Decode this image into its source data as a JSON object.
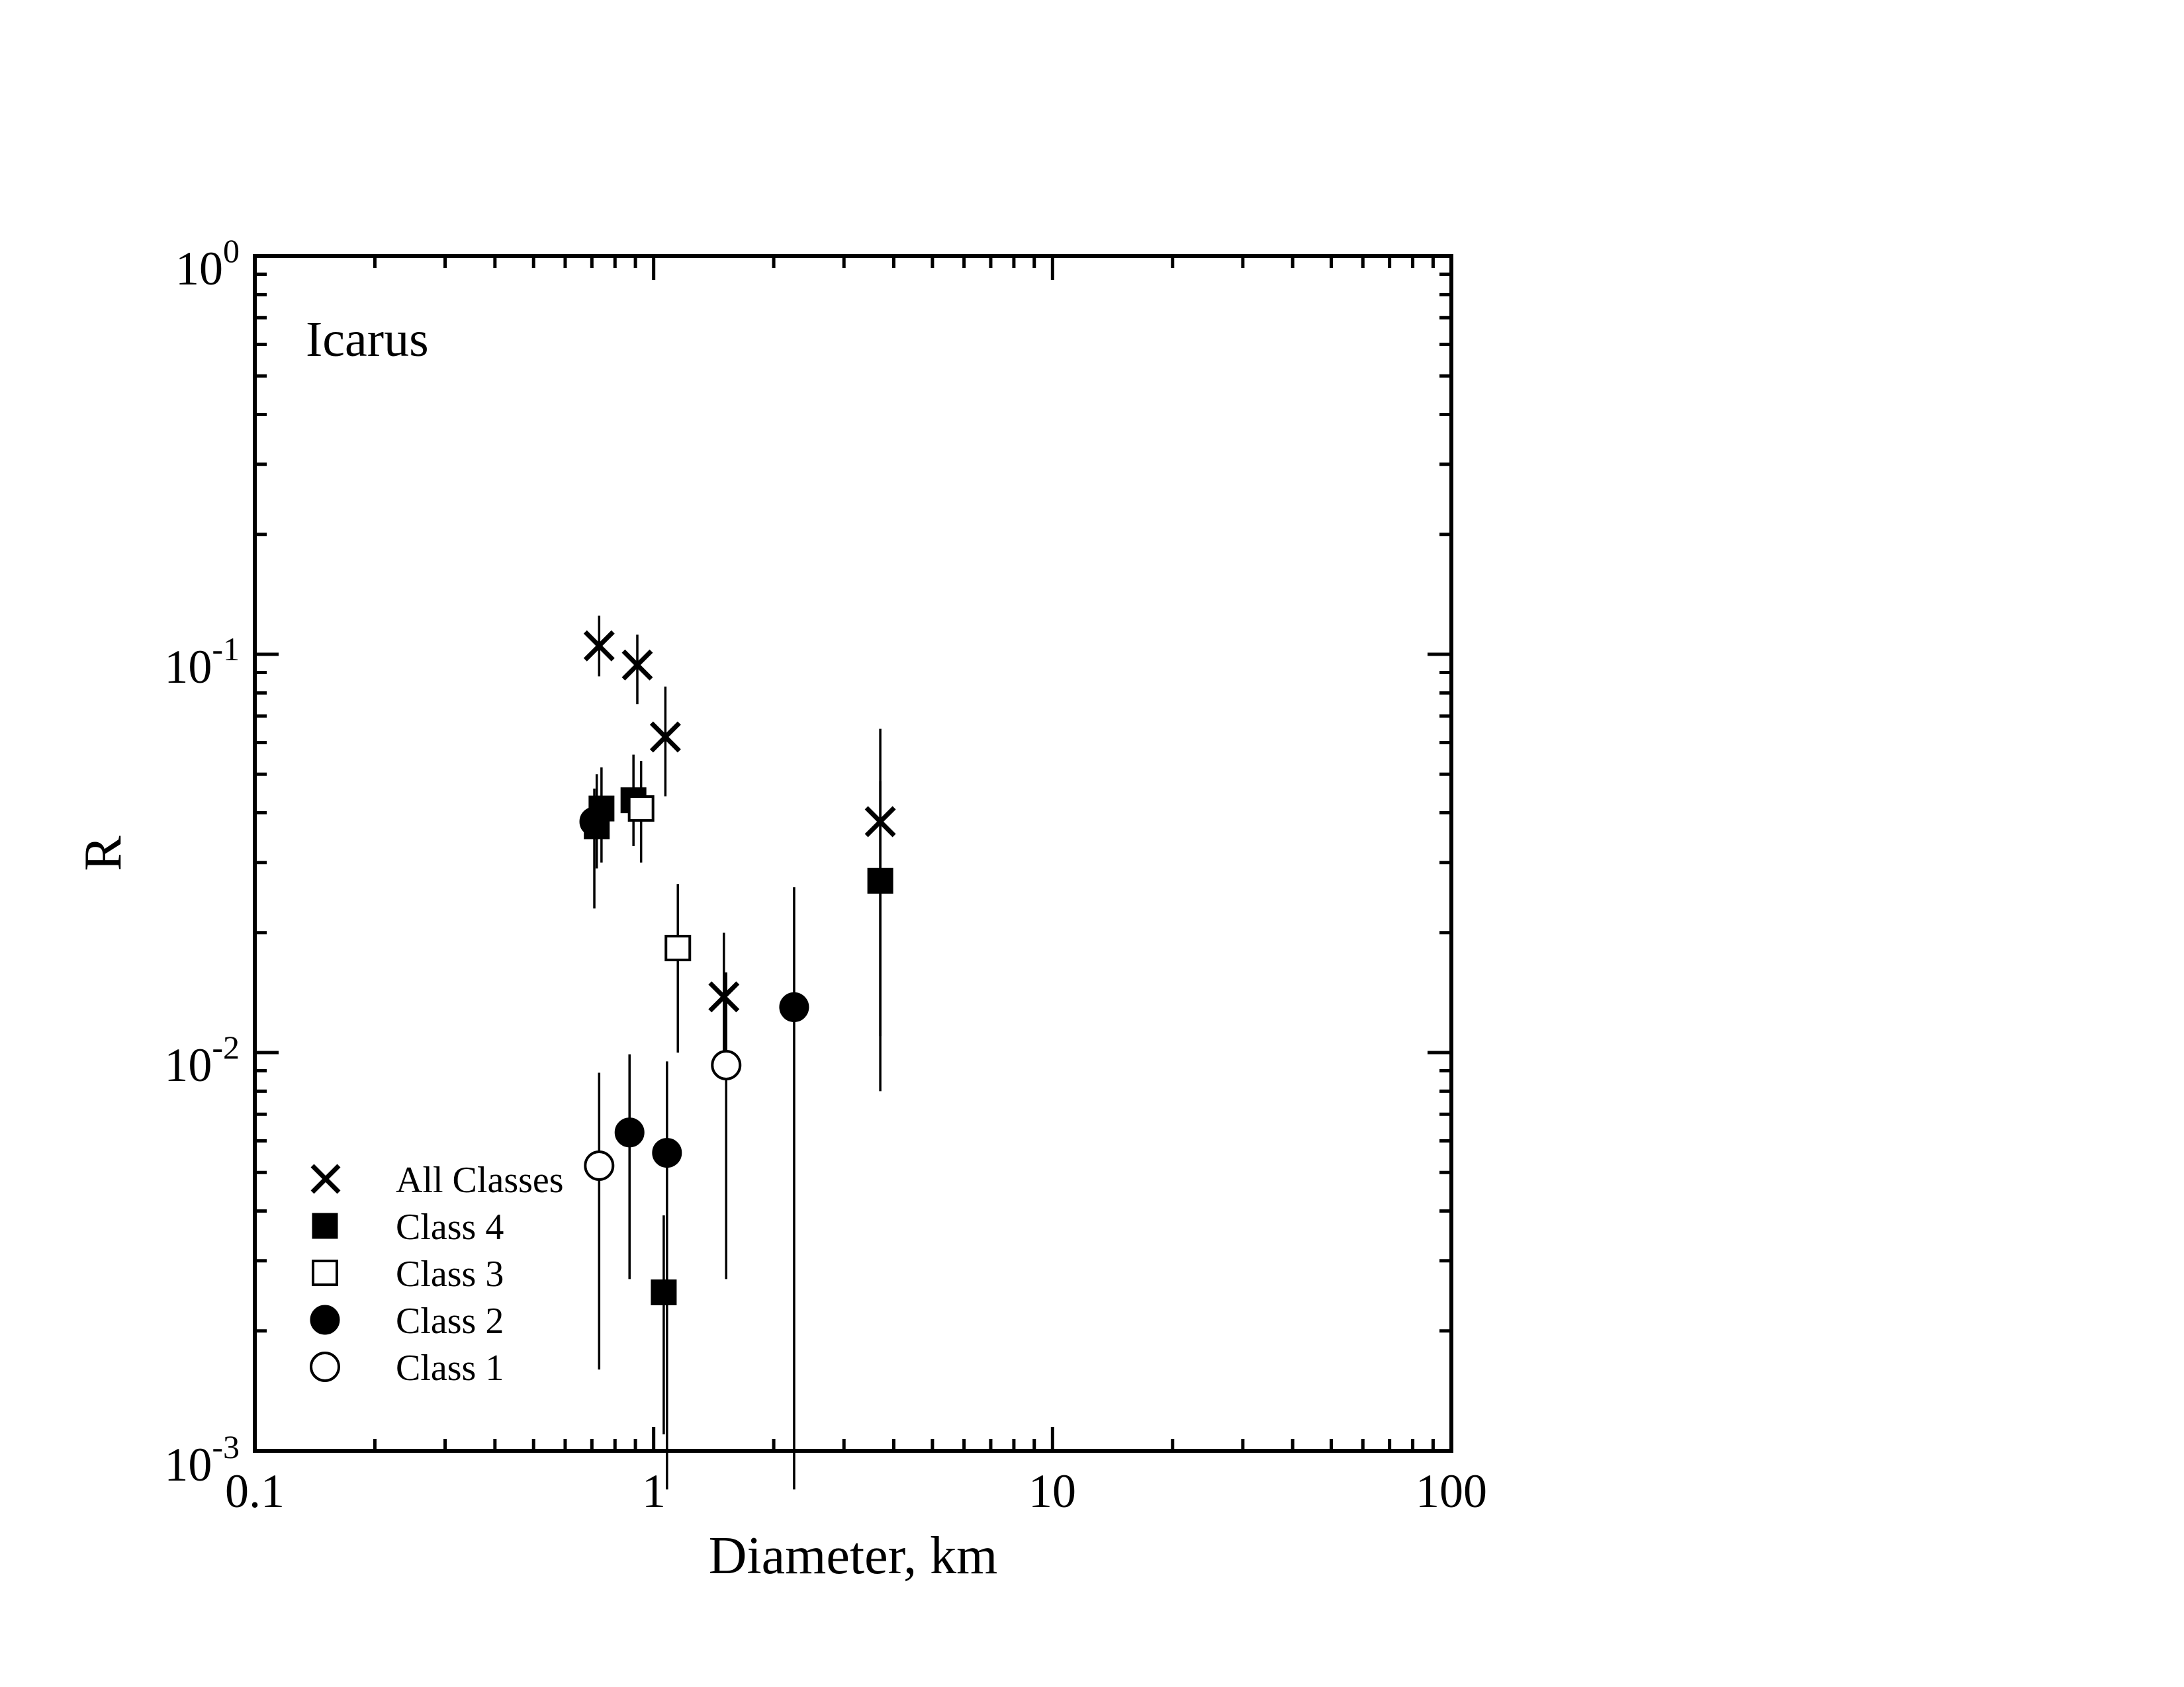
{
  "chart_data": {
    "type": "scatter",
    "title": "Icarus",
    "xlabel": "Diameter, km",
    "ylabel": "R",
    "xscale": "log",
    "yscale": "log",
    "xlim": [
      0.1,
      100
    ],
    "ylim": [
      0.001,
      1
    ],
    "x_tick_labels": [
      "0.1",
      "1",
      "10",
      "100"
    ],
    "y_tick_labels": [
      {
        "base": "10",
        "exp": "0"
      },
      {
        "base": "10",
        "exp": "-1"
      },
      {
        "base": "10",
        "exp": "-2"
      },
      {
        "base": "10",
        "exp": "-3"
      }
    ],
    "legend_position": "lower-left",
    "series": [
      {
        "name": "All Classes",
        "marker": "x",
        "points": [
          {
            "x": 0.73,
            "y": 0.105,
            "ylo": 0.088,
            "yhi": 0.125
          },
          {
            "x": 0.91,
            "y": 0.094,
            "ylo": 0.075,
            "yhi": 0.112
          },
          {
            "x": 1.07,
            "y": 0.062,
            "ylo": 0.044,
            "yhi": 0.083
          },
          {
            "x": 1.5,
            "y": 0.0138,
            "ylo": 0.0095,
            "yhi": 0.02
          },
          {
            "x": 3.7,
            "y": 0.038,
            "ylo": 0.011,
            "yhi": 0.065
          }
        ]
      },
      {
        "name": "Class 4",
        "marker": "square-filled",
        "points": [
          {
            "x": 0.74,
            "y": 0.041,
            "ylo": 0.03,
            "yhi": 0.052
          },
          {
            "x": 0.72,
            "y": 0.037,
            "ylo": 0.029,
            "yhi": 0.05
          },
          {
            "x": 0.89,
            "y": 0.043,
            "ylo": 0.033,
            "yhi": 0.056
          },
          {
            "x": 1.06,
            "y": 0.0025,
            "ylo": 0.0011,
            "yhi": 0.0039
          },
          {
            "x": 3.7,
            "y": 0.027,
            "ylo": 0.008,
            "yhi": 0.048
          }
        ]
      },
      {
        "name": "Class 3",
        "marker": "square-open",
        "points": [
          {
            "x": 0.93,
            "y": 0.041,
            "ylo": 0.03,
            "yhi": 0.054
          },
          {
            "x": 1.15,
            "y": 0.0183,
            "ylo": 0.01,
            "yhi": 0.0265
          }
        ]
      },
      {
        "name": "Class 2",
        "marker": "circle-filled",
        "points": [
          {
            "x": 0.71,
            "y": 0.038,
            "ylo": 0.023,
            "yhi": 0.046
          },
          {
            "x": 0.87,
            "y": 0.0063,
            "ylo": 0.0027,
            "yhi": 0.0099
          },
          {
            "x": 1.08,
            "y": 0.0056,
            "ylo": 0.0008,
            "yhi": 0.0095
          },
          {
            "x": 2.25,
            "y": 0.013,
            "ylo": 0.0008,
            "yhi": 0.026
          }
        ]
      },
      {
        "name": "Class 1",
        "marker": "circle-open",
        "points": [
          {
            "x": 0.73,
            "y": 0.0052,
            "ylo": 0.0016,
            "yhi": 0.0089
          },
          {
            "x": 1.52,
            "y": 0.0093,
            "ylo": 0.0027,
            "yhi": 0.0159
          }
        ]
      }
    ]
  }
}
